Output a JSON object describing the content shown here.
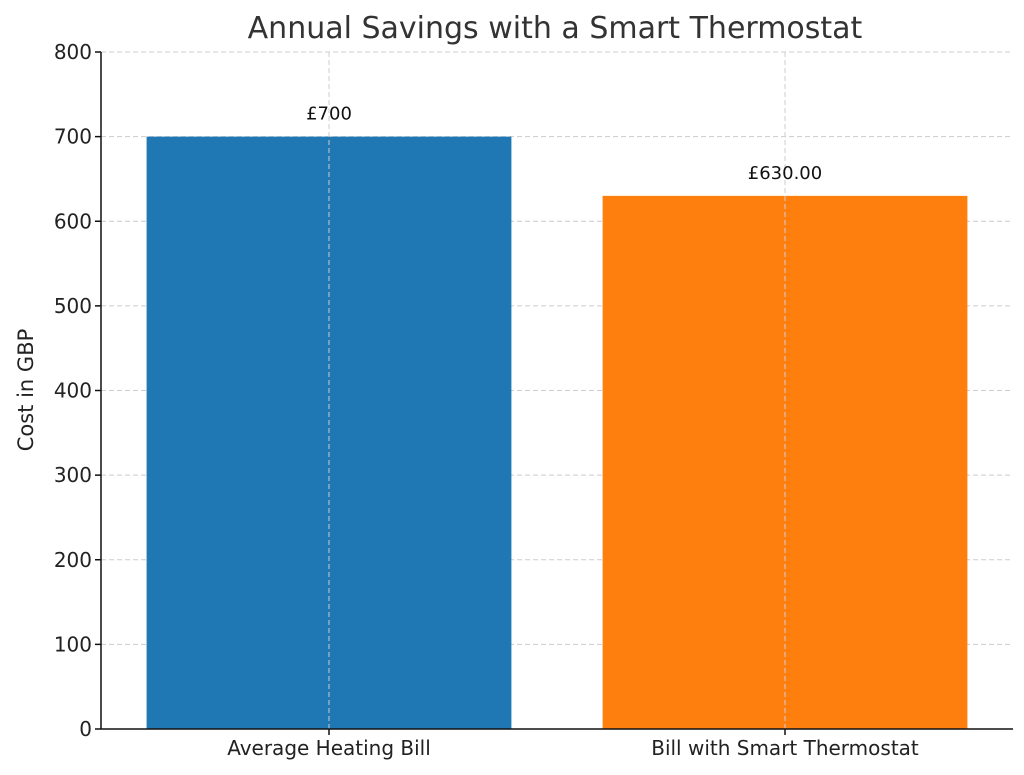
{
  "chart_data": {
    "type": "bar",
    "title": "Annual Savings with a Smart Thermostat",
    "xlabel": "",
    "ylabel": "Cost in GBP",
    "categories": [
      "Average Heating Bill",
      "Bill with Smart Thermostat"
    ],
    "values": [
      700,
      630
    ],
    "value_labels": [
      "£700",
      "£630.00"
    ],
    "colors": [
      "#1f77b4",
      "#ff7f0e"
    ],
    "ylim": [
      0,
      800
    ],
    "yticks": [
      0,
      100,
      200,
      300,
      400,
      500,
      600,
      700,
      800
    ],
    "grid": true,
    "legend": "none"
  }
}
